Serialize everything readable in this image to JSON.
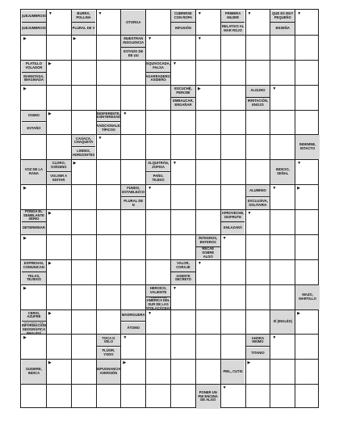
{
  "puzzle": {
    "clues": [
      {
        "key": "quejumbroso-a",
        "text": "QUEJUMBROSO"
      },
      {
        "key": "burra",
        "text": "BURRA, POLLINA"
      },
      {
        "key": "otorga",
        "text": "OTORGA"
      },
      {
        "key": "cubrirse",
        "text": "CUBRIRSE CON ROPA"
      },
      {
        "key": "primera",
        "text": "PRIMERA MUJER"
      },
      {
        "key": "pequeno",
        "text": "QUE ES MUY PEQUEÑO"
      },
      {
        "key": "quejumbroso-b",
        "text": "QUEJUMBROSO"
      },
      {
        "key": "plural-v",
        "text": "PLURAL DE V"
      },
      {
        "key": "insolencia",
        "text": "MUESTRAN INSOLENCIA"
      },
      {
        "key": "infusion",
        "text": "INFUSIÓN"
      },
      {
        "key": "mar-rojo",
        "text": "RELATIVO AL MAR ROJO"
      },
      {
        "key": "ensena",
        "text": "ENSEÑA"
      },
      {
        "key": "estado-eeuu",
        "text": "ESTADO DE EE UU"
      },
      {
        "key": "platillo",
        "text": "PLATILLO VOLADOR"
      },
      {
        "key": "equivocada",
        "text": "EQUIVOCADA, FALSA"
      },
      {
        "key": "inventada",
        "text": "INVENTADA, IMAGINADA"
      },
      {
        "key": "agarradero",
        "text": "AGARRADERO, ASIDERO"
      },
      {
        "key": "escuche",
        "text": "ESCUCHÉ, PERCIBÍ"
      },
      {
        "key": "alguno",
        "text": "ALGUNO"
      },
      {
        "key": "embaucar",
        "text": "EMBAUCAR, ENGAÑAR"
      },
      {
        "key": "irritacion",
        "text": "IRRITACIÓN, ENOJO"
      },
      {
        "key": "osmio",
        "text": "OSMIO"
      },
      {
        "key": "indiferente",
        "text": "INDIFERENTE, DESINTERESADO"
      },
      {
        "key": "estano",
        "text": "ESTAÑO"
      },
      {
        "key": "tradicionales",
        "text": "TRADICIONALES, TÍPICOS"
      },
      {
        "key": "casaca",
        "text": "CASACA, CHAQUETA"
      },
      {
        "key": "indemne",
        "text": "INDEMNE, INTACTO"
      },
      {
        "key": "cloro",
        "text": "CLORO, OXÍGENO"
      },
      {
        "key": "lindes",
        "text": "LINDES, HORIZONTES"
      },
      {
        "key": "voz-rana",
        "text": "VOZ DE LA RANA"
      },
      {
        "key": "alquitran",
        "text": "ALQUITRÁN, ZOPISA"
      },
      {
        "key": "indicio",
        "text": "INDICIO, SEÑAL"
      },
      {
        "key": "volver",
        "text": "VOLVER A EDITAR"
      },
      {
        "key": "pano",
        "text": "PAÑO, TEJIDO"
      },
      {
        "key": "fundo",
        "text": "FUNDO, ESTABLEZCO"
      },
      {
        "key": "aluminio",
        "text": "ALUMINIO"
      },
      {
        "key": "plural-n",
        "text": "PLURAL DE N"
      },
      {
        "key": "exclusiva",
        "text": "EXCLUSIVA, SOLITARIA"
      },
      {
        "key": "semblante",
        "text": "PONGA EL SEMBLANTE SERIO"
      },
      {
        "key": "aprovecha",
        "text": "APROVECHE, DISFRUTE"
      },
      {
        "key": "determinar",
        "text": "DETERMINAR"
      },
      {
        "key": "enlazara",
        "text": "ENLAZARÁ"
      },
      {
        "key": "integros",
        "text": "ÍNTEGROS, ENTEROS"
      },
      {
        "key": "recae",
        "text": "RECAE SOBRE ALGO"
      },
      {
        "key": "expresan",
        "text": "EXPRESAN, COMUNICAN"
      },
      {
        "key": "valor",
        "text": "VALOR, CORAJE"
      },
      {
        "key": "telas",
        "text": "TELAS, TEJIDOS"
      },
      {
        "key": "agente",
        "text": "AGENTE SECRETO"
      },
      {
        "key": "heroico",
        "text": "HEROICO, VALIENTE"
      },
      {
        "key": "arbol",
        "text": "ÁRBOL DE AMÉRICA DEL SUR DE LAS FITOLACÁCEAS"
      },
      {
        "key": "mazo",
        "text": "MAZO, MARTILLO"
      },
      {
        "key": "cerio",
        "text": "CERIO, AZUFRE"
      },
      {
        "key": "sistema",
        "text": "SISTEMA DE INFORMACIÓN GEOGRÁFICA (INGLÉS)"
      },
      {
        "key": "madriguera",
        "text": "MADRIGUERA"
      },
      {
        "key": "si-ingles",
        "text": "SÍ (INGLÉS)"
      },
      {
        "key": "atomo",
        "text": "ÁTOMO"
      },
      {
        "key": "toca-velo",
        "text": "TOCA O VELO"
      },
      {
        "key": "ahora",
        "text": "AHORA MISMO"
      },
      {
        "key": "fluor",
        "text": "FLÚOR, YODO"
      },
      {
        "key": "titanio",
        "text": "TITANIO"
      },
      {
        "key": "sugiere",
        "text": "SUGIERE, INDICA"
      },
      {
        "key": "repugnancia",
        "text": "REPUGNANCIA, AVERSIÓN"
      },
      {
        "key": "piel",
        "text": "PIEL, CUTIS"
      },
      {
        "key": "poner-pie",
        "text": "PONER UN PIE ENCIMA DE ALGO"
      }
    ]
  }
}
